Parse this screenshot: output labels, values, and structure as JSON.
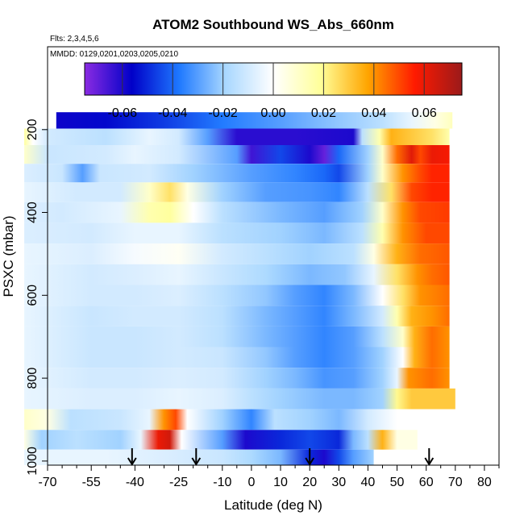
{
  "chart_data": {
    "type": "heatmap",
    "title": "ATOM2 Southbound WS_Abs_660nm",
    "flights_label": "Flts: 2,3,4,5,6",
    "dates_label": "MMDD: 0129,0201,0203,0205,0210",
    "xlabel": "Latitude (deg N)",
    "ylabel": "PSXC (mbar)",
    "xlim": [
      -70,
      85
    ],
    "ylim": [
      1010,
      0
    ],
    "x_ticks": [
      -70,
      -55,
      -40,
      -25,
      -10,
      0,
      10,
      20,
      30,
      40,
      50,
      60,
      70,
      80
    ],
    "x_tick_labels": [
      "-70",
      "-55",
      "-40",
      "-25",
      "-10",
      "0",
      "10",
      "20",
      "30",
      "40",
      "50",
      "60",
      "70",
      "80"
    ],
    "y_ticks": [
      200,
      400,
      600,
      800,
      1000
    ],
    "y_tick_labels": [
      "200",
      "400",
      "600",
      "800",
      "1000"
    ],
    "colorbar": {
      "range": [
        -0.075,
        0.075
      ],
      "ticks": [
        -0.06,
        -0.04,
        -0.02,
        0.0,
        0.02,
        0.04,
        0.06
      ],
      "tick_labels": [
        "-0.06",
        "-0.04",
        "-0.02",
        "0.00",
        "0.02",
        "0.04",
        "0.06"
      ],
      "colors": [
        "#8a2be2",
        "#0000c8",
        "#1e78ff",
        "#aad8ff",
        "#ffffff",
        "#ffff9a",
        "#ffa500",
        "#ff1a00",
        "#9b1a1a"
      ]
    },
    "arrow_latitudes": [
      -41,
      -19,
      20,
      61
    ],
    "bands": [
      {
        "p": 180,
        "x0": -67,
        "x1": 69,
        "points": [
          [
            -67,
            -0.058
          ],
          [
            -50,
            -0.055
          ],
          [
            -30,
            -0.047
          ],
          [
            -10,
            -0.037
          ],
          [
            10,
            -0.03
          ],
          [
            30,
            -0.022
          ],
          [
            45,
            -0.015
          ],
          [
            55,
            -0.005
          ],
          [
            63,
            0.005
          ],
          [
            69,
            0.012
          ]
        ]
      },
      {
        "p": 215,
        "x0": -78,
        "x1": 68,
        "points": [
          [
            -78,
            0.018
          ],
          [
            -75,
            0.0
          ],
          [
            -70,
            -0.01
          ],
          [
            -50,
            -0.015
          ],
          [
            -35,
            -0.005
          ],
          [
            -25,
            -0.01
          ],
          [
            -15,
            -0.03
          ],
          [
            -5,
            -0.062
          ],
          [
            15,
            -0.062
          ],
          [
            35,
            -0.06
          ],
          [
            38,
            -0.015
          ],
          [
            44,
            0.015
          ],
          [
            48,
            0.035
          ],
          [
            55,
            0.03
          ],
          [
            62,
            0.025
          ],
          [
            68,
            0.015
          ]
        ]
      },
      {
        "p": 260,
        "x0": -78,
        "x1": 68,
        "points": [
          [
            -78,
            0.01
          ],
          [
            -70,
            -0.012
          ],
          [
            -50,
            -0.01
          ],
          [
            -40,
            -0.005
          ],
          [
            -25,
            -0.01
          ],
          [
            -5,
            -0.03
          ],
          [
            0,
            -0.065
          ],
          [
            10,
            -0.045
          ],
          [
            20,
            -0.06
          ],
          [
            25,
            -0.07
          ],
          [
            30,
            -0.04
          ],
          [
            40,
            -0.02
          ],
          [
            45,
            0.01
          ],
          [
            50,
            0.045
          ],
          [
            55,
            0.062
          ],
          [
            58,
            0.05
          ],
          [
            62,
            0.06
          ],
          [
            68,
            0.058
          ]
        ]
      },
      {
        "p": 305,
        "x0": -78,
        "x1": 68,
        "points": [
          [
            -78,
            -0.008
          ],
          [
            -65,
            -0.012
          ],
          [
            -58,
            -0.03
          ],
          [
            -52,
            -0.012
          ],
          [
            -35,
            -0.01
          ],
          [
            -20,
            -0.02
          ],
          [
            0,
            -0.03
          ],
          [
            15,
            -0.035
          ],
          [
            25,
            -0.04
          ],
          [
            30,
            -0.045
          ],
          [
            40,
            -0.02
          ],
          [
            45,
            0.01
          ],
          [
            52,
            0.04
          ],
          [
            58,
            0.05
          ],
          [
            62,
            0.055
          ],
          [
            68,
            0.055
          ]
        ]
      },
      {
        "p": 350,
        "x0": -78,
        "x1": 68,
        "points": [
          [
            -78,
            -0.005
          ],
          [
            -60,
            -0.01
          ],
          [
            -45,
            -0.01
          ],
          [
            -35,
            0.01
          ],
          [
            -28,
            0.025
          ],
          [
            -22,
            0.005
          ],
          [
            -10,
            -0.02
          ],
          [
            5,
            -0.03
          ],
          [
            20,
            -0.032
          ],
          [
            30,
            -0.035
          ],
          [
            40,
            -0.015
          ],
          [
            48,
            0.025
          ],
          [
            55,
            0.05
          ],
          [
            62,
            0.055
          ],
          [
            68,
            0.055
          ]
        ]
      },
      {
        "p": 400,
        "x0": -78,
        "x1": 68,
        "points": [
          [
            -78,
            -0.008
          ],
          [
            -65,
            -0.01
          ],
          [
            -45,
            -0.005
          ],
          [
            -35,
            0.015
          ],
          [
            -28,
            0.018
          ],
          [
            -20,
            0.0
          ],
          [
            -10,
            -0.015
          ],
          [
            10,
            -0.025
          ],
          [
            25,
            -0.03
          ],
          [
            38,
            -0.02
          ],
          [
            45,
            0.01
          ],
          [
            52,
            0.04
          ],
          [
            58,
            0.05
          ],
          [
            68,
            0.052
          ]
        ]
      },
      {
        "p": 450,
        "x0": -78,
        "x1": 68,
        "points": [
          [
            -78,
            -0.008
          ],
          [
            -55,
            -0.01
          ],
          [
            -40,
            -0.005
          ],
          [
            -25,
            -0.005
          ],
          [
            -10,
            -0.015
          ],
          [
            10,
            -0.02
          ],
          [
            25,
            -0.025
          ],
          [
            38,
            -0.015
          ],
          [
            45,
            0.015
          ],
          [
            52,
            0.04
          ],
          [
            60,
            0.05
          ],
          [
            68,
            0.05
          ]
        ]
      },
      {
        "p": 500,
        "x0": -78,
        "x1": 68,
        "points": [
          [
            -78,
            -0.005
          ],
          [
            -55,
            -0.008
          ],
          [
            -40,
            -0.002
          ],
          [
            -25,
            0.002
          ],
          [
            -10,
            -0.01
          ],
          [
            5,
            -0.015
          ],
          [
            20,
            -0.02
          ],
          [
            35,
            -0.015
          ],
          [
            42,
            0.005
          ],
          [
            50,
            0.035
          ],
          [
            58,
            0.045
          ],
          [
            68,
            0.048
          ]
        ]
      },
      {
        "p": 550,
        "x0": -78,
        "x1": 68,
        "points": [
          [
            -78,
            -0.005
          ],
          [
            -55,
            -0.01
          ],
          [
            -40,
            -0.008
          ],
          [
            -25,
            -0.005
          ],
          [
            -10,
            -0.012
          ],
          [
            5,
            -0.018
          ],
          [
            20,
            -0.025
          ],
          [
            32,
            -0.022
          ],
          [
            42,
            -0.005
          ],
          [
            50,
            0.025
          ],
          [
            57,
            0.04
          ],
          [
            62,
            0.045
          ],
          [
            68,
            0.048
          ]
        ]
      },
      {
        "p": 600,
        "x0": -78,
        "x1": 68,
        "points": [
          [
            -78,
            -0.005
          ],
          [
            -55,
            -0.01
          ],
          [
            -40,
            -0.01
          ],
          [
            -25,
            -0.008
          ],
          [
            -10,
            -0.015
          ],
          [
            5,
            -0.022
          ],
          [
            15,
            -0.03
          ],
          [
            25,
            -0.035
          ],
          [
            35,
            -0.025
          ],
          [
            45,
            0.0
          ],
          [
            52,
            0.025
          ],
          [
            58,
            0.04
          ],
          [
            68,
            0.045
          ]
        ]
      },
      {
        "p": 650,
        "x0": -78,
        "x1": 68,
        "points": [
          [
            -78,
            -0.005
          ],
          [
            -55,
            -0.012
          ],
          [
            -40,
            -0.01
          ],
          [
            -25,
            -0.01
          ],
          [
            -10,
            -0.015
          ],
          [
            5,
            -0.025
          ],
          [
            15,
            -0.03
          ],
          [
            25,
            -0.035
          ],
          [
            35,
            -0.025
          ],
          [
            45,
            -0.01
          ],
          [
            50,
            0.015
          ],
          [
            55,
            0.035
          ],
          [
            62,
            0.04
          ],
          [
            68,
            0.045
          ]
        ]
      },
      {
        "p": 700,
        "x0": -78,
        "x1": 68,
        "points": [
          [
            -78,
            -0.005
          ],
          [
            -55,
            -0.012
          ],
          [
            -40,
            -0.012
          ],
          [
            -25,
            -0.01
          ],
          [
            -10,
            -0.015
          ],
          [
            5,
            -0.025
          ],
          [
            15,
            -0.03
          ],
          [
            25,
            -0.035
          ],
          [
            35,
            -0.03
          ],
          [
            45,
            -0.015
          ],
          [
            52,
            0.01
          ],
          [
            56,
            0.035
          ],
          [
            62,
            0.045
          ],
          [
            68,
            0.04
          ]
        ]
      },
      {
        "p": 750,
        "x0": -78,
        "x1": 68,
        "points": [
          [
            -78,
            -0.005
          ],
          [
            -55,
            -0.012
          ],
          [
            -40,
            -0.012
          ],
          [
            -25,
            -0.01
          ],
          [
            -10,
            -0.012
          ],
          [
            5,
            -0.022
          ],
          [
            15,
            -0.03
          ],
          [
            25,
            -0.035
          ],
          [
            35,
            -0.03
          ],
          [
            45,
            -0.02
          ],
          [
            52,
            0.0
          ],
          [
            56,
            0.035
          ],
          [
            62,
            0.045
          ],
          [
            68,
            0.04
          ]
        ]
      },
      {
        "p": 800,
        "x0": -78,
        "x1": 68,
        "points": [
          [
            -78,
            -0.005
          ],
          [
            -55,
            -0.01
          ],
          [
            -40,
            -0.01
          ],
          [
            -25,
            -0.008
          ],
          [
            -10,
            -0.01
          ],
          [
            5,
            -0.02
          ],
          [
            15,
            -0.025
          ],
          [
            25,
            -0.032
          ],
          [
            35,
            -0.03
          ],
          [
            45,
            -0.02
          ],
          [
            50,
            -0.005
          ],
          [
            54,
            0.04
          ],
          [
            62,
            0.045
          ],
          [
            68,
            0.04
          ]
        ]
      },
      {
        "p": 850,
        "x0": -78,
        "x1": 70,
        "points": [
          [
            -78,
            -0.005
          ],
          [
            -55,
            -0.008
          ],
          [
            -40,
            -0.008
          ],
          [
            -25,
            -0.005
          ],
          [
            -10,
            -0.008
          ],
          [
            0,
            -0.015
          ],
          [
            10,
            -0.02
          ],
          [
            25,
            -0.025
          ],
          [
            35,
            -0.025
          ],
          [
            45,
            -0.02
          ],
          [
            50,
            0.02
          ],
          [
            55,
            0.03
          ],
          [
            70,
            0.03
          ]
        ]
      },
      {
        "p": 900,
        "x0": -78,
        "x1": 71,
        "points": [
          [
            -78,
            0.01
          ],
          [
            -70,
            0.005
          ],
          [
            -62,
            -0.015
          ],
          [
            -45,
            -0.012
          ],
          [
            -35,
            -0.005
          ],
          [
            -30,
            0.04
          ],
          [
            -26,
            0.05
          ],
          [
            -22,
            0.0
          ],
          [
            -10,
            -0.02
          ],
          [
            0,
            -0.035
          ],
          [
            8,
            -0.015
          ],
          [
            20,
            -0.02
          ],
          [
            30,
            -0.025
          ],
          [
            40,
            -0.01
          ],
          [
            50,
            0.0
          ],
          [
            60,
            0.0
          ],
          [
            71,
            0.0
          ]
        ]
      },
      {
        "p": 950,
        "x0": -78,
        "x1": 57,
        "points": [
          [
            -78,
            0.005
          ],
          [
            -72,
            -0.02
          ],
          [
            -60,
            -0.015
          ],
          [
            -45,
            -0.02
          ],
          [
            -38,
            -0.005
          ],
          [
            -32,
            0.06
          ],
          [
            -28,
            0.065
          ],
          [
            -24,
            0.0
          ],
          [
            -10,
            -0.03
          ],
          [
            -2,
            -0.06
          ],
          [
            10,
            -0.05
          ],
          [
            20,
            -0.045
          ],
          [
            30,
            -0.05
          ],
          [
            35,
            -0.025
          ],
          [
            40,
            -0.015
          ],
          [
            45,
            0.035
          ],
          [
            50,
            0.005
          ],
          [
            57,
            0.005
          ]
        ]
      },
      {
        "p": 995,
        "x0": -78,
        "x1": 42,
        "points": [
          [
            -78,
            -0.005
          ],
          [
            -50,
            -0.005
          ],
          [
            -30,
            -0.008
          ],
          [
            -10,
            -0.012
          ],
          [
            0,
            -0.018
          ],
          [
            10,
            -0.025
          ],
          [
            20,
            -0.05
          ],
          [
            25,
            -0.06
          ],
          [
            30,
            -0.045
          ],
          [
            35,
            -0.03
          ],
          [
            42,
            -0.02
          ]
        ]
      }
    ]
  }
}
